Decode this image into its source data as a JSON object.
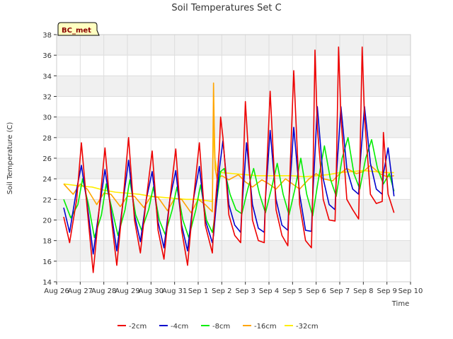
{
  "chart_data": {
    "type": "line",
    "title": "Soil Temperatures Set C",
    "xlabel": "Time",
    "ylabel": "Soil Temperature (C)",
    "station_badge": "BC_met",
    "ylim": [
      14,
      38
    ],
    "yticks": [
      14,
      16,
      18,
      20,
      22,
      24,
      26,
      28,
      30,
      32,
      34,
      36,
      38
    ],
    "xlim": [
      0,
      15
    ],
    "xticks": [
      {
        "x": 0,
        "label": "Aug 26"
      },
      {
        "x": 1,
        "label": "Aug 27"
      },
      {
        "x": 2,
        "label": "Aug 28"
      },
      {
        "x": 3,
        "label": "Aug 29"
      },
      {
        "x": 4,
        "label": "Aug 30"
      },
      {
        "x": 5,
        "label": "Aug 31"
      },
      {
        "x": 6,
        "label": "Sep 1"
      },
      {
        "x": 7,
        "label": "Sep 2"
      },
      {
        "x": 8,
        "label": "Sep 3"
      },
      {
        "x": 9,
        "label": "Sep 4"
      },
      {
        "x": 10,
        "label": "Sep 5"
      },
      {
        "x": 11,
        "label": "Sep 6"
      },
      {
        "x": 12,
        "label": "Sep 7"
      },
      {
        "x": 13,
        "label": "Sep 8"
      },
      {
        "x": 14,
        "label": "Sep 9"
      },
      {
        "x": 15,
        "label": "Sep 10"
      }
    ],
    "grid": true,
    "legend_position": "bottom",
    "series": [
      {
        "name": "-2cm",
        "color": "#ee0000",
        "x": [
          0.3,
          0.55,
          0.85,
          1.05,
          1.3,
          1.55,
          1.8,
          2.05,
          2.3,
          2.55,
          2.8,
          3.05,
          3.3,
          3.55,
          3.8,
          4.05,
          4.3,
          4.55,
          4.8,
          5.05,
          5.3,
          5.55,
          5.8,
          6.05,
          6.3,
          6.6,
          6.65,
          6.9,
          6.95,
          7.05,
          7.3,
          7.55,
          7.8,
          7.85,
          8.0,
          8.3,
          8.55,
          8.8,
          8.85,
          9.05,
          9.3,
          9.55,
          9.8,
          9.85,
          10.05,
          10.3,
          10.55,
          10.8,
          10.85,
          10.95,
          11.05,
          11.3,
          11.55,
          11.8,
          11.85,
          11.95,
          12.05,
          12.3,
          12.55,
          12.8,
          12.85,
          12.95,
          13.05,
          13.3,
          13.55,
          13.8,
          13.85,
          14.05,
          14.3
        ],
        "values": [
          20.3,
          17.8,
          22.0,
          27.5,
          21.0,
          14.9,
          21.0,
          27.0,
          20.5,
          15.6,
          21.5,
          28.0,
          20.0,
          16.8,
          22.0,
          26.7,
          19.0,
          16.2,
          22.0,
          26.9,
          19.0,
          15.6,
          22.0,
          27.5,
          19.5,
          16.8,
          19.0,
          27.0,
          30.0,
          28.0,
          20.5,
          18.5,
          17.8,
          21.0,
          31.5,
          20.0,
          18.0,
          17.8,
          22.0,
          32.5,
          21.0,
          18.5,
          17.5,
          22.0,
          34.5,
          21.5,
          18.0,
          17.3,
          22.0,
          36.5,
          29.0,
          22.0,
          20.0,
          19.9,
          24.0,
          36.8,
          30.0,
          22.0,
          21.0,
          20.1,
          25.0,
          36.8,
          30.0,
          22.5,
          21.6,
          21.8,
          28.5,
          22.5,
          20.7
        ]
      },
      {
        "name": "-4cm",
        "color": "#0000cc",
        "x": [
          0.3,
          0.55,
          0.85,
          1.05,
          1.3,
          1.55,
          1.8,
          2.05,
          2.3,
          2.55,
          2.8,
          3.05,
          3.3,
          3.55,
          3.8,
          4.05,
          4.3,
          4.55,
          4.8,
          5.05,
          5.3,
          5.55,
          5.8,
          6.05,
          6.3,
          6.6,
          6.65,
          6.9,
          7.05,
          7.3,
          7.55,
          7.8,
          7.85,
          8.05,
          8.3,
          8.55,
          8.8,
          8.85,
          9.05,
          9.3,
          9.55,
          9.8,
          9.85,
          10.05,
          10.3,
          10.55,
          10.8,
          10.85,
          11.05,
          11.3,
          11.55,
          11.8,
          11.85,
          12.05,
          12.3,
          12.55,
          12.8,
          12.85,
          13.05,
          13.3,
          13.55,
          13.8,
          13.85,
          14.05,
          14.3
        ],
        "values": [
          21.2,
          18.8,
          23.0,
          25.3,
          21.5,
          16.7,
          21.0,
          24.9,
          21.0,
          17.0,
          21.5,
          25.8,
          20.5,
          17.9,
          22.0,
          24.7,
          19.8,
          17.3,
          22.0,
          24.8,
          19.5,
          17.0,
          22.0,
          25.2,
          20.0,
          17.8,
          18.5,
          25.0,
          27.7,
          21.5,
          19.5,
          18.8,
          21.0,
          27.5,
          21.5,
          19.2,
          18.8,
          22.0,
          28.7,
          22.0,
          19.5,
          19.0,
          22.0,
          29.0,
          22.5,
          19.0,
          18.9,
          22.0,
          31.0,
          24.0,
          21.5,
          21.0,
          24.0,
          31.0,
          25.0,
          23.0,
          22.5,
          25.0,
          31.0,
          25.5,
          23.0,
          22.5,
          24.5,
          27.0,
          22.3
        ]
      },
      {
        "name": "-8cm",
        "color": "#00ee00",
        "x": [
          0.3,
          0.6,
          0.9,
          1.1,
          1.35,
          1.6,
          1.9,
          2.1,
          2.35,
          2.6,
          2.9,
          3.1,
          3.35,
          3.6,
          3.9,
          4.1,
          4.35,
          4.6,
          4.9,
          5.1,
          5.35,
          5.6,
          5.9,
          6.1,
          6.35,
          6.6,
          6.65,
          6.95,
          7.1,
          7.35,
          7.6,
          7.85,
          8.1,
          8.35,
          8.6,
          8.85,
          9.1,
          9.35,
          9.6,
          9.85,
          10.1,
          10.35,
          10.6,
          10.85,
          11.1,
          11.35,
          11.6,
          11.85,
          12.1,
          12.35,
          12.6,
          12.85,
          13.1,
          13.35,
          13.6,
          13.85,
          14.1,
          14.3
        ],
        "values": [
          22.0,
          20.2,
          21.5,
          24.0,
          21.5,
          18.3,
          20.5,
          23.5,
          21.0,
          18.5,
          21.0,
          23.9,
          20.5,
          19.0,
          21.0,
          23.2,
          20.0,
          18.6,
          21.0,
          23.2,
          20.0,
          18.3,
          21.0,
          23.4,
          20.0,
          18.8,
          19.5,
          24.7,
          25.0,
          22.5,
          21.0,
          20.6,
          23.0,
          25.0,
          22.5,
          20.7,
          23.0,
          25.5,
          22.5,
          20.5,
          23.0,
          26.0,
          22.5,
          20.4,
          24.0,
          27.2,
          24.0,
          22.3,
          26.0,
          28.0,
          24.5,
          23.0,
          26.0,
          27.8,
          25.0,
          23.5,
          24.5,
          22.8
        ]
      },
      {
        "name": "-16cm",
        "color": "#ffa500",
        "x": [
          0.3,
          0.7,
          1.0,
          1.3,
          1.7,
          2.0,
          2.3,
          2.7,
          3.0,
          3.3,
          3.7,
          4.0,
          4.3,
          4.7,
          5.0,
          5.3,
          5.7,
          6.0,
          6.3,
          6.6,
          6.65,
          6.68,
          6.72,
          6.8,
          7.0,
          7.3,
          7.7,
          8.0,
          8.3,
          8.7,
          9.0,
          9.3,
          9.7,
          10.0,
          10.3,
          10.7,
          11.0,
          11.3,
          11.7,
          12.0,
          12.3,
          12.7,
          13.0,
          13.3,
          13.7,
          14.0,
          14.3
        ],
        "values": [
          23.5,
          22.5,
          23.5,
          23.0,
          21.5,
          22.6,
          22.5,
          21.3,
          22.3,
          22.3,
          21.2,
          22.3,
          22.2,
          20.9,
          22.1,
          22.0,
          20.7,
          22.0,
          21.5,
          20.8,
          33.3,
          29.0,
          25.0,
          24.0,
          24.3,
          23.9,
          24.4,
          23.7,
          23.2,
          23.9,
          23.5,
          23.0,
          24.0,
          23.5,
          23.0,
          24.0,
          24.5,
          24.0,
          23.8,
          24.5,
          25.0,
          24.5,
          24.7,
          25.3,
          24.5,
          24.2,
          24.3
        ]
      },
      {
        "name": "-32cm",
        "color": "#ffee00",
        "x": [
          0.3,
          1.0,
          1.5,
          2.0,
          2.5,
          3.0,
          3.5,
          4.0,
          4.5,
          5.0,
          5.5,
          6.0,
          6.3,
          6.6,
          6.65,
          6.7,
          6.8,
          7.0,
          7.5,
          8.0,
          8.5,
          9.0,
          9.5,
          10.0,
          10.5,
          11.0,
          11.5,
          12.0,
          12.5,
          13.0,
          13.5,
          14.0,
          14.3
        ],
        "values": [
          23.5,
          23.3,
          23.2,
          22.9,
          22.7,
          22.6,
          22.5,
          22.3,
          22.2,
          22.1,
          22.0,
          22.0,
          21.9,
          21.8,
          30.0,
          26.0,
          24.8,
          24.6,
          24.5,
          24.4,
          24.3,
          24.3,
          24.3,
          24.3,
          24.2,
          24.3,
          24.4,
          24.6,
          24.7,
          24.8,
          24.7,
          24.6,
          24.6
        ]
      }
    ]
  }
}
